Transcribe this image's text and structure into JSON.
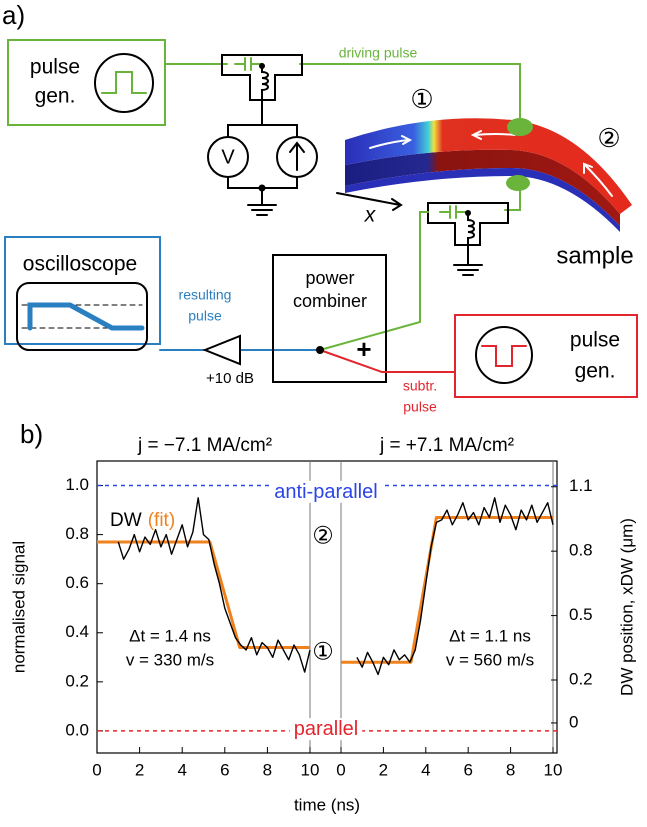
{
  "diagram": {
    "panel_label": "a)",
    "pulse_gen_top": [
      "pulse",
      "gen."
    ],
    "driving_pulse": "driving pulse",
    "voltmeter": "V",
    "position_1": "①",
    "position_2": "②",
    "x_axis": "x",
    "sample": "sample",
    "oscilloscope": "oscilloscope",
    "resulting_pulse": [
      "resulting",
      "pulse"
    ],
    "amplifier": "+10 dB",
    "combiner": [
      "power",
      "combiner"
    ],
    "plus": "+",
    "subtr_pulse": [
      "subtr.",
      "pulse"
    ],
    "pulse_gen_bottom": [
      "pulse",
      "gen."
    ]
  },
  "chart_data": [
    {
      "type": "line",
      "panel_label": "b)",
      "subtitle": "j = −7.1 MA/cm²",
      "xlabel": "time (ns)",
      "ylabel": "normalised signal",
      "xlim": [
        0,
        10
      ],
      "xticks": [
        0,
        2,
        4,
        6,
        8,
        10
      ],
      "ylim": [
        -0.09,
        1.1
      ],
      "yticks": [
        {
          "value": 0,
          "label": "0.0"
        },
        0.2,
        0.4,
        0.6,
        0.8,
        {
          "value": 1,
          "label": "1.0"
        }
      ],
      "reference_lines": [
        {
          "value": 1,
          "label": "anti-parallel",
          "color": "#2b45e8"
        },
        {
          "value": 0,
          "label": "parallel",
          "color": "#e3262d"
        }
      ],
      "annotations": [
        "Δt = 1.4 ns",
        "v = 330 m/s",
        "②",
        "①"
      ],
      "series": [
        {
          "name": "DW",
          "color": "#000000",
          "x": [
            1.0,
            1.25,
            1.5,
            1.75,
            2.0,
            2.25,
            2.5,
            2.75,
            3.0,
            3.25,
            3.5,
            3.75,
            4.0,
            4.25,
            4.5,
            4.75,
            5.0,
            5.25,
            5.5,
            5.75,
            6.0,
            6.25,
            6.5,
            6.75,
            7.0,
            7.25,
            7.5,
            7.75,
            8.0,
            8.25,
            8.5,
            8.75,
            9.0,
            9.25,
            9.5,
            9.75,
            10.0
          ],
          "values": [
            0.77,
            0.7,
            0.74,
            0.8,
            0.73,
            0.79,
            0.76,
            0.82,
            0.75,
            0.8,
            0.72,
            0.78,
            0.84,
            0.75,
            0.81,
            0.95,
            0.8,
            0.78,
            0.68,
            0.6,
            0.5,
            0.44,
            0.38,
            0.35,
            0.33,
            0.38,
            0.31,
            0.36,
            0.34,
            0.3,
            0.37,
            0.33,
            0.29,
            0.35,
            0.31,
            0.24,
            0.33
          ]
        },
        {
          "name": "(fit)",
          "color": "#f0821e",
          "x": [
            0,
            5.3,
            6.7,
            10
          ],
          "values": [
            0.77,
            0.77,
            0.34,
            0.34
          ]
        }
      ]
    },
    {
      "type": "line",
      "subtitle": "j = +7.1 MA/cm²",
      "y2label": "DW position, xDW (μm)",
      "xlim": [
        0,
        10
      ],
      "xticks": [
        0,
        2,
        4,
        6,
        8,
        10
      ],
      "y2lim": [
        -0.14,
        1.22
      ],
      "y2ticks": [
        0,
        0.2,
        0.5,
        0.8,
        1.1
      ],
      "annotations": [
        "Δt = 1.1 ns",
        "v = 560 m/s"
      ],
      "series": [
        {
          "color": "#000000",
          "x": [
            0.75,
            1.0,
            1.25,
            1.5,
            1.75,
            2.0,
            2.25,
            2.5,
            2.75,
            3.0,
            3.25,
            3.5,
            3.75,
            4.0,
            4.25,
            4.5,
            4.75,
            5.0,
            5.25,
            5.5,
            5.75,
            6.0,
            6.25,
            6.5,
            6.75,
            7.0,
            7.25,
            7.5,
            7.75,
            8.0,
            8.25,
            8.5,
            8.75,
            9.0,
            9.25,
            9.5,
            9.75,
            10.0
          ],
          "values": [
            0.3,
            0.26,
            0.32,
            0.28,
            0.23,
            0.3,
            0.27,
            0.33,
            0.29,
            0.31,
            0.28,
            0.33,
            0.45,
            0.6,
            0.75,
            0.85,
            0.86,
            0.9,
            0.84,
            0.88,
            0.93,
            0.86,
            0.89,
            0.84,
            0.91,
            0.87,
            0.95,
            0.85,
            0.92,
            0.88,
            0.82,
            0.9,
            0.86,
            0.92,
            0.85,
            0.89,
            0.93,
            0.84
          ]
        },
        {
          "color": "#f0821e",
          "x": [
            0,
            3.3,
            4.5,
            10
          ],
          "values": [
            0.28,
            0.28,
            0.87,
            0.87
          ]
        }
      ]
    }
  ]
}
